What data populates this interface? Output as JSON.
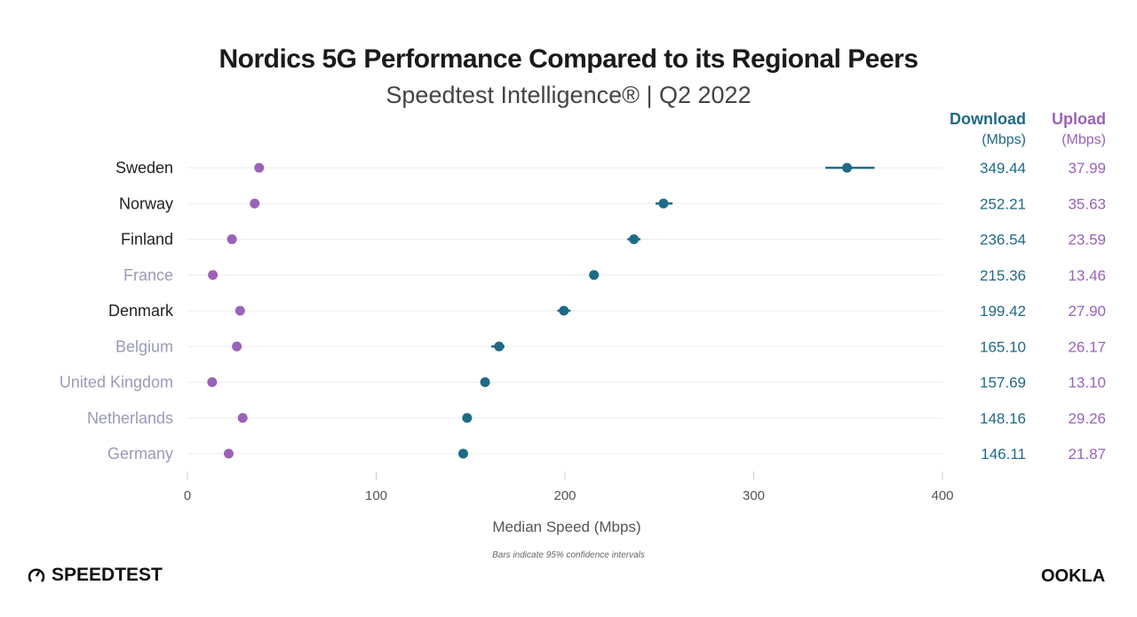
{
  "title": "Nordics 5G Performance Compared to its Regional Peers",
  "subtitle": "Speedtest Intelligence® | Q2 2022",
  "columns": {
    "download": "Download",
    "download_unit": "(Mbps)",
    "upload": "Upload",
    "upload_unit": "(Mbps)"
  },
  "note": "Bars indicate 95% confidence intervals",
  "logos": {
    "speedtest": "SPEEDTEST",
    "ookla": "OOKLA"
  },
  "colors": {
    "download": "#1f6a85",
    "upload": "#9b62b8",
    "nordic_label": "#222222",
    "other_label": "#9a9ab8",
    "grid": "#eeeeee"
  },
  "chart_data": {
    "type": "dot",
    "xlabel": "Median Speed (Mbps)",
    "xlim": [
      0,
      400
    ],
    "xticks": [
      0,
      100,
      200,
      300,
      400
    ],
    "grid": true,
    "categories": [
      "Sweden",
      "Norway",
      "Finland",
      "France",
      "Denmark",
      "Belgium",
      "United Kingdom",
      "Netherlands",
      "Germany"
    ],
    "nordic": [
      true,
      true,
      true,
      false,
      true,
      false,
      false,
      false,
      false
    ],
    "series": [
      {
        "name": "Download",
        "unit": "(Mbps)",
        "values": [
          349.44,
          252.21,
          236.54,
          215.36,
          199.42,
          165.1,
          157.69,
          148.16,
          146.11
        ],
        "ci_low": [
          338,
          248,
          233,
          213,
          196,
          161,
          156,
          146,
          144
        ],
        "ci_high": [
          364,
          257,
          240,
          218,
          203,
          168,
          159,
          150,
          148
        ]
      },
      {
        "name": "Upload",
        "unit": "(Mbps)",
        "values": [
          37.99,
          35.63,
          23.59,
          13.46,
          27.9,
          26.17,
          13.1,
          29.26,
          21.87
        ]
      }
    ]
  }
}
